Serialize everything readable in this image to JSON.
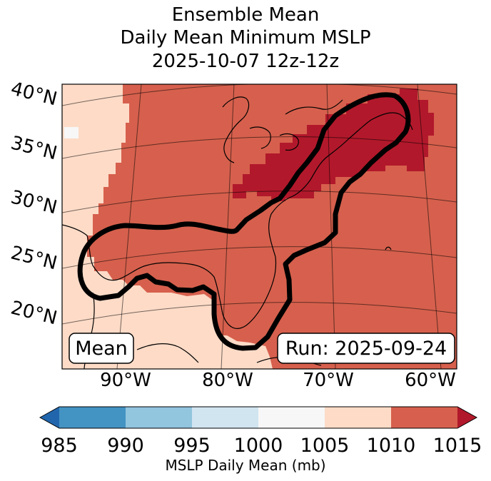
{
  "title": {
    "line1": "Ensemble Mean",
    "line2": "Daily Mean Minimum MSLP",
    "line3": "2025-10-07 12z-12z"
  },
  "map": {
    "lat_labels": [
      "40°N",
      "35°N",
      "30°N",
      "25°N",
      "20°N"
    ],
    "lon_labels": [
      "90°W",
      "80°W",
      "70°W",
      "60°W"
    ],
    "left_box": "Mean",
    "right_box": "Run: 2025-09-24",
    "field_colors": {
      "1005-1010": "#fddbc7",
      "1010-1015": "#d6604d",
      ">1015": "#b2182b"
    },
    "contour_color": "#000000"
  },
  "colorbar": {
    "tick_labels": [
      "985",
      "990",
      "995",
      "1000",
      "1005",
      "1010",
      "1015"
    ],
    "label": "MSLP Daily Mean (mb)",
    "bins": [
      {
        "range": "<985",
        "color": "#2166ac"
      },
      {
        "range": "985-990",
        "color": "#4393c3"
      },
      {
        "range": "990-995",
        "color": "#92c5de"
      },
      {
        "range": "995-1000",
        "color": "#d1e5f0"
      },
      {
        "range": "1000-1005",
        "color": "#f7f7f7"
      },
      {
        "range": "1005-1010",
        "color": "#fddbc7"
      },
      {
        "range": "1010-1015",
        "color": "#d6604d"
      },
      {
        "range": ">1015",
        "color": "#b2182b"
      }
    ]
  }
}
